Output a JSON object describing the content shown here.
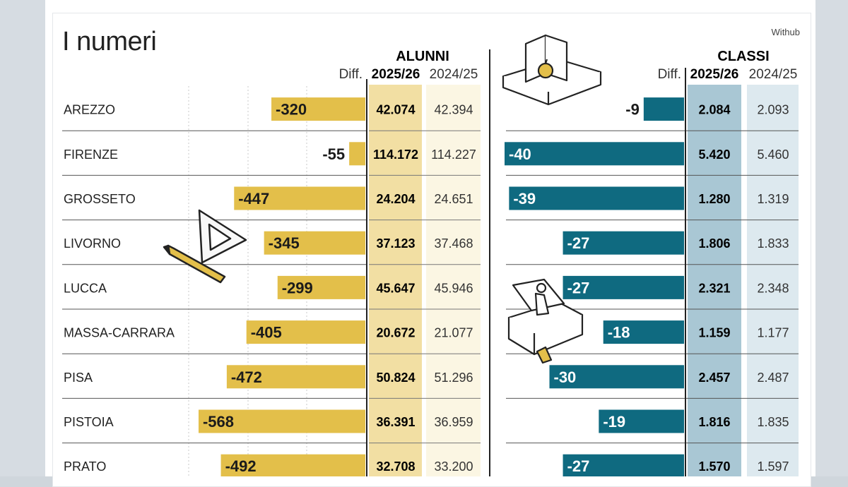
{
  "page": {
    "title": "I numeri",
    "source": "Withub"
  },
  "colors": {
    "alunni_bar": "#e3bf4a",
    "classi_bar": "#0f6a80",
    "alunni_col_current": "#f2dfa3",
    "alunni_col_prev": "#fbf6e3",
    "classi_col_current": "#a9c7d4",
    "classi_col_prev": "#dde9ef"
  },
  "icons": [
    "pencil-triangle-icon",
    "book-apple-icon",
    "reading-student-icon"
  ],
  "chart_data": [
    {
      "type": "bar",
      "group": "ALUNNI",
      "columns": {
        "diff": "Diff.",
        "current": "2025/26",
        "previous": "2024/25"
      },
      "categories": [
        "AREZZO",
        "FIRENZE",
        "GROSSETO",
        "LIVORNO",
        "LUCCA",
        "MASSA-CARRARA",
        "PISA",
        "PISTOIA",
        "PRATO"
      ],
      "diff": [
        "-320",
        "-55",
        "-447",
        "-345",
        "-299",
        "-405",
        "-472",
        "-568",
        "-492"
      ],
      "current": [
        "42.074",
        "114.172",
        "24.204",
        "37.123",
        "45.647",
        "20.672",
        "50.824",
        "36.391",
        "32.708"
      ],
      "previous": [
        "42.394",
        "114.227",
        "24.651",
        "37.468",
        "45.946",
        "21.077",
        "51.296",
        "36.959",
        "33.200"
      ],
      "values": [
        -320,
        -55,
        -447,
        -345,
        -299,
        -405,
        -472,
        -568,
        -492
      ],
      "xlim": [
        -580,
        0
      ]
    },
    {
      "type": "bar",
      "group": "CLASSI",
      "columns": {
        "diff": "Diff.",
        "current": "2025/26",
        "previous": "2024/25"
      },
      "categories": [
        "AREZZO",
        "FIRENZE",
        "GROSSETO",
        "LIVORNO",
        "LUCCA",
        "MASSA-CARRARA",
        "PISA",
        "PISTOIA",
        "PRATO"
      ],
      "diff": [
        "-9",
        "-40",
        "-39",
        "-27",
        "-27",
        "-18",
        "-30",
        "-19",
        "-27"
      ],
      "current": [
        "2.084",
        "5.420",
        "1.280",
        "1.806",
        "2.321",
        "1.159",
        "2.457",
        "1.816",
        "1.570"
      ],
      "previous": [
        "2.093",
        "5.460",
        "1.319",
        "1.833",
        "2.348",
        "1.177",
        "2.487",
        "1.835",
        "1.597"
      ],
      "values": [
        -9,
        -40,
        -39,
        -27,
        -27,
        -18,
        -30,
        -19,
        -27
      ],
      "xlim": [
        -40,
        0
      ]
    }
  ]
}
